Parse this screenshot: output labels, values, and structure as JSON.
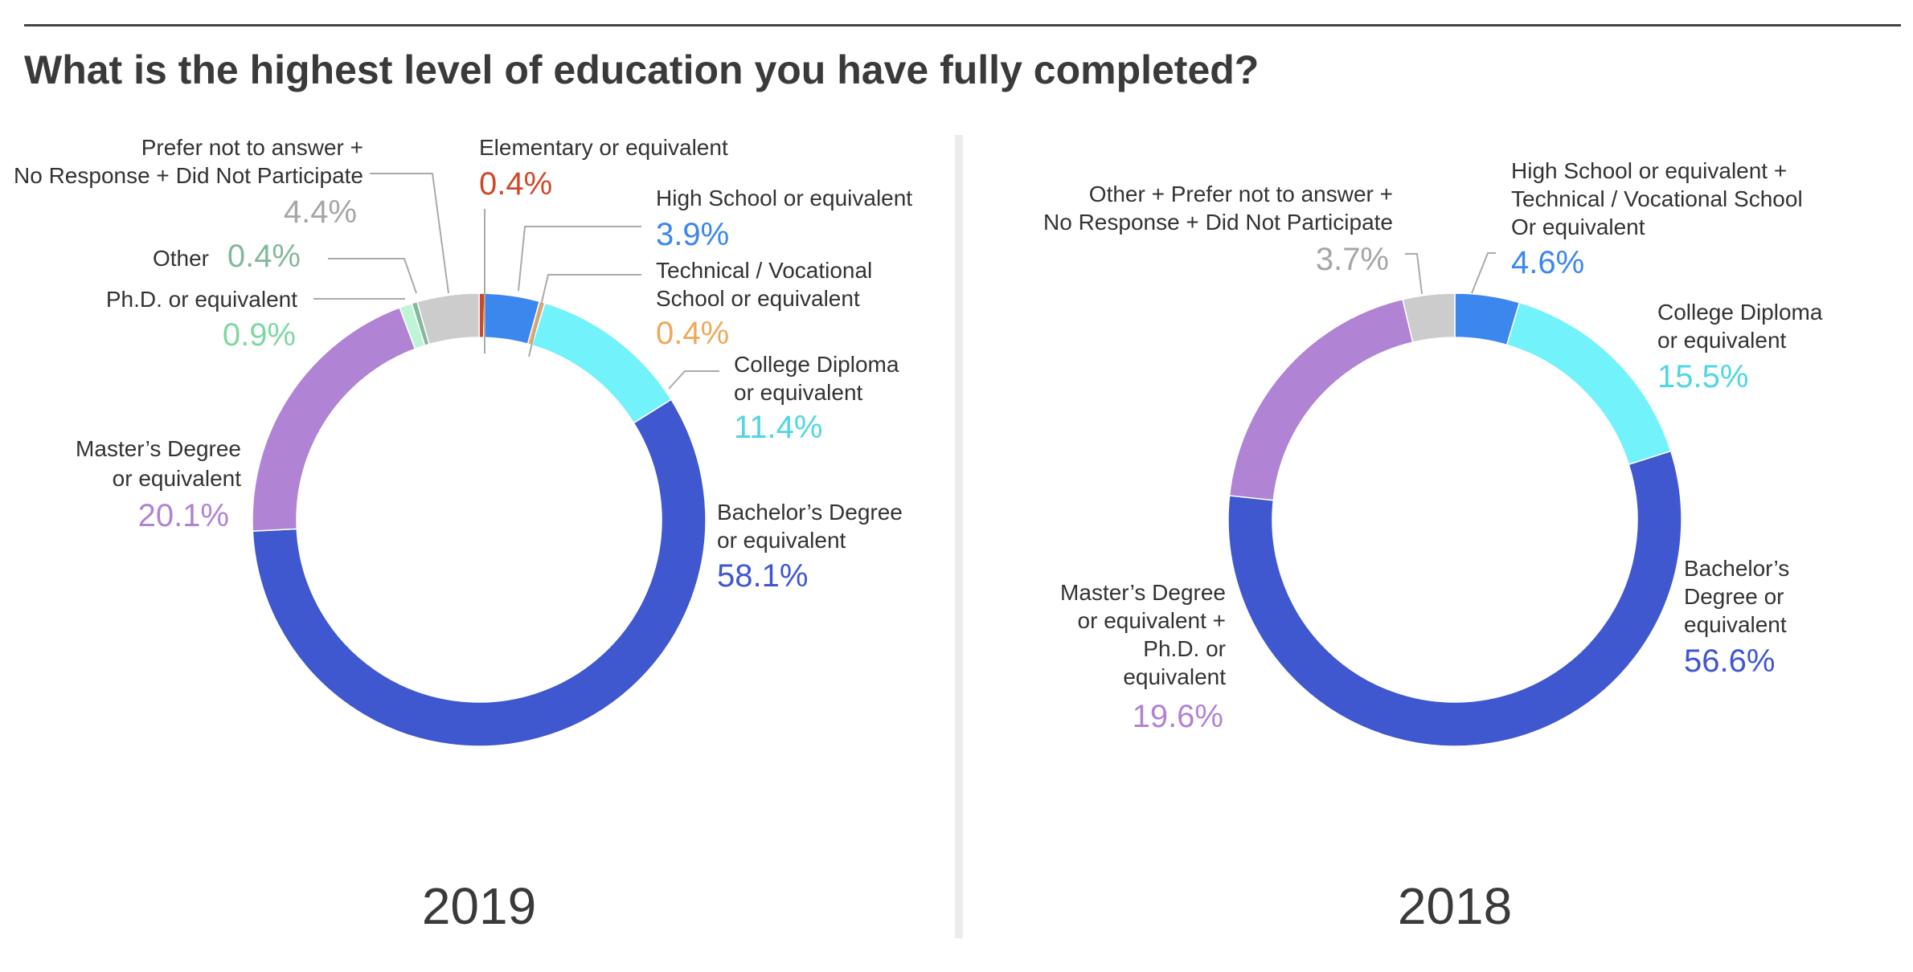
{
  "title": "What is the highest level of education you have fully completed?",
  "chart_data": [
    {
      "type": "pie",
      "year": "2019",
      "slices": [
        {
          "label": "Elementary or equivalent",
          "value": 0.4,
          "display": "0.4%",
          "color": "#cc4a2b"
        },
        {
          "label": "High School or equivalent",
          "value": 3.9,
          "display": "3.9%",
          "color": "#3b87ee"
        },
        {
          "label": "Technical / Vocational School or equivalent",
          "value": 0.4,
          "display": "0.4%",
          "color": "#f0a85a"
        },
        {
          "label": "College Diploma or equivalent",
          "value": 11.4,
          "display": "11.4%",
          "color": "#72f2fb"
        },
        {
          "label": "Bachelor’s Degree or equivalent",
          "value": 58.1,
          "display": "58.1%",
          "color": "#3f57cf"
        },
        {
          "label": "Master’s Degree or equivalent",
          "value": 20.1,
          "display": "20.1%",
          "color": "#b083d4"
        },
        {
          "label": "Ph.D. or equivalent",
          "value": 0.9,
          "display": "0.9%",
          "color": "#bff5d6"
        },
        {
          "label": "Other",
          "value": 0.4,
          "display": "0.4%",
          "color": "#84b89c"
        },
        {
          "label": "Prefer not to answer + No Response + Did Not Participate",
          "value": 4.4,
          "display": "4.4%",
          "color": "#cccccc"
        }
      ]
    },
    {
      "type": "pie",
      "year": "2018",
      "slices": [
        {
          "label": "High School or equivalent + Technical / Vocational School Or equivalent",
          "value": 4.6,
          "display": "4.6%",
          "color": "#3b87ee"
        },
        {
          "label": "College Diploma or equivalent",
          "value": 15.5,
          "display": "15.5%",
          "color": "#72f2fb"
        },
        {
          "label": "Bachelor’s Degree or equivalent",
          "value": 56.6,
          "display": "56.6%",
          "color": "#3f57cf"
        },
        {
          "label": "Master’s Degree or equivalent + Ph.D. or equivalent",
          "value": 19.6,
          "display": "19.6%",
          "color": "#b083d4"
        },
        {
          "label": "Other + Prefer not to answer + No Response + Did Not Participate",
          "value": 3.7,
          "display": "3.7%",
          "color": "#cccccc"
        }
      ]
    }
  ],
  "labels": {
    "c2019": {
      "elementary": {
        "lines": [
          "Elementary or equivalent"
        ],
        "value": "0.4%",
        "color": "#cc4a2b"
      },
      "highschool": {
        "lines": [
          "High School or equivalent"
        ],
        "value": "3.9%",
        "color": "#3b87ee"
      },
      "technical": {
        "lines": [
          "Technical / Vocational",
          "School or equivalent"
        ],
        "value": "0.4%",
        "color": "#f0a85a"
      },
      "college": {
        "lines": [
          "College Diploma",
          "or equivalent"
        ],
        "value": "11.4%",
        "color": "#4fd6e2"
      },
      "bachelor": {
        "lines": [
          "Bachelor’s Degree",
          "or equivalent"
        ],
        "value": "58.1%",
        "color": "#3f57cf"
      },
      "master": {
        "lines": [
          "Master’s Degree",
          "or equivalent"
        ],
        "value": "20.1%",
        "color": "#b083d4"
      },
      "phd": {
        "lines": [
          "Ph.D. or equivalent"
        ],
        "value": "0.9%",
        "color": "#7ed8a2"
      },
      "other": {
        "lines": [
          "Other"
        ],
        "value": "0.4%",
        "color": "#84b89c"
      },
      "prefer": {
        "lines": [
          "Prefer not to answer +",
          "No Response + Did Not Participate"
        ],
        "value": "4.4%",
        "color": "#a6a6a6"
      }
    },
    "c2018": {
      "highschool": {
        "lines": [
          "High School or equivalent +",
          "Technical / Vocational School",
          "Or equivalent"
        ],
        "value": "4.6%",
        "color": "#3b87ee"
      },
      "college": {
        "lines": [
          "College Diploma",
          "or equivalent"
        ],
        "value": "15.5%",
        "color": "#4fd6e2"
      },
      "bachelor": {
        "lines": [
          "Bachelor’s",
          "Degree or",
          "equivalent"
        ],
        "value": "56.6%",
        "color": "#3f57cf"
      },
      "master": {
        "lines": [
          "Master’s Degree",
          "or equivalent +",
          "Ph.D. or",
          "equivalent"
        ],
        "value": "19.6%",
        "color": "#b083d4"
      },
      "other": {
        "lines": [
          "Other + Prefer not to answer +",
          "No Response + Did Not Participate"
        ],
        "value": "3.7%",
        "color": "#a6a6a6"
      }
    },
    "year2019": "2019",
    "year2018": "2018"
  }
}
